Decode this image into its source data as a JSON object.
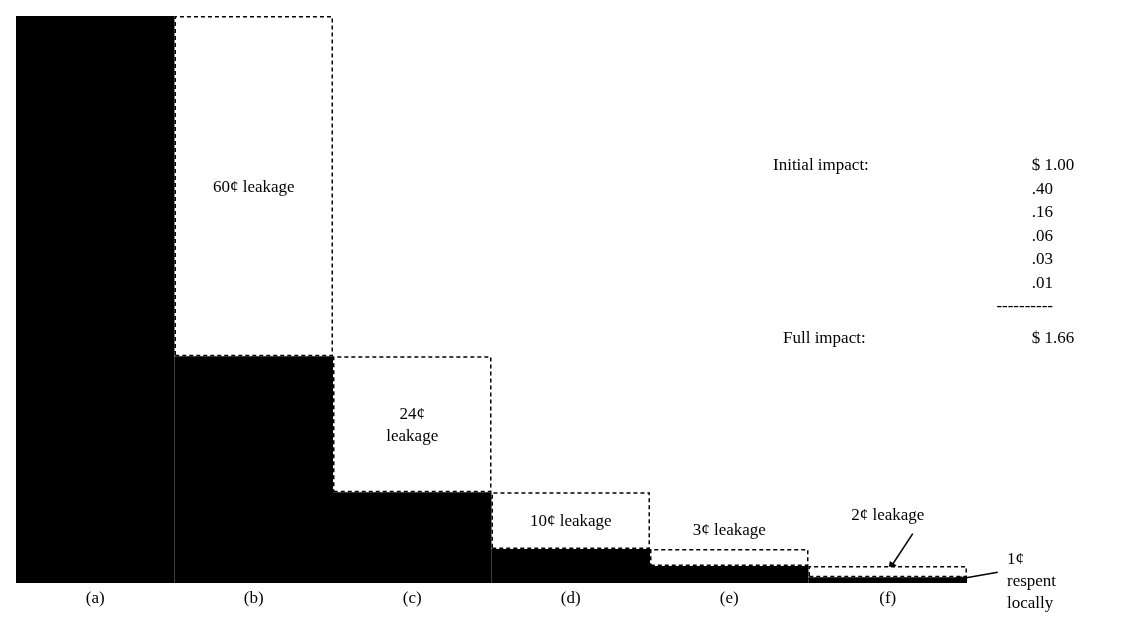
{
  "chart_data": {
    "type": "bar",
    "stacked": true,
    "categories": [
      "(a)",
      "(b)",
      "(c)",
      "(d)",
      "(e)",
      "(f)"
    ],
    "series": [
      {
        "color": "#000000",
        "values": [
          100,
          40,
          16,
          6,
          3,
          1
        ],
        "value_labels": [
          null,
          null,
          null,
          null,
          null,
          "1¢\nrespent\nlocally"
        ]
      },
      {
        "color": "#ffffff",
        "line_style": "dashed",
        "values": [
          null,
          60,
          24,
          10,
          3,
          2
        ],
        "value_labels": [
          null,
          "60¢ leakage",
          "24¢\nleakage",
          "10¢ leakage",
          "3¢ leakage",
          "2¢ leakage"
        ]
      }
    ],
    "annotations": [
      "Initial impact:",
      "$ 1.00",
      ".40",
      ".16",
      ".06",
      ".03",
      ".01",
      "----------",
      "Full impact:",
      "$ 1.66"
    ]
  }
}
